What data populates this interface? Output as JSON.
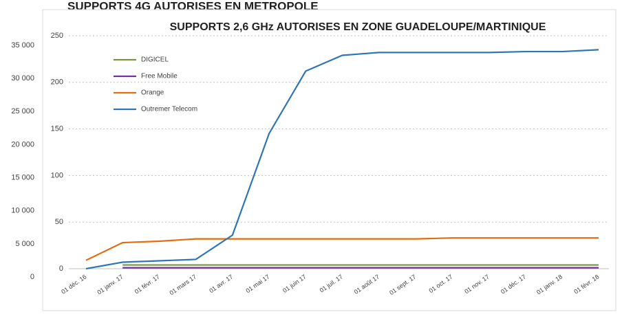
{
  "chart_data": [
    {
      "type": "line",
      "title": "SUPPORTS 2,6 GHz AUTORISES EN ZONE GUADELOUPE/MARTINIQUE",
      "categories": [
        "01 déc. 16",
        "01 janv. 17",
        "01 févr. 17",
        "01 mars 17",
        "01 avr. 17",
        "01 mai 17",
        "01 juin 17",
        "01 juil. 17",
        "01 août 17",
        "01 sept. 17",
        "01 oct. 17",
        "01 nov. 17",
        "01 déc. 17",
        "01 janv. 18",
        "01 févr. 18"
      ],
      "series": [
        {
          "name": "DIGICEL",
          "color": "#77933c",
          "values": [
            null,
            4,
            4,
            4,
            4,
            4,
            4,
            4,
            4,
            4,
            4,
            4,
            4,
            4,
            4
          ]
        },
        {
          "name": "Free Mobile",
          "color": "#7030a0",
          "values": [
            null,
            1,
            1,
            1,
            1,
            1,
            1,
            1,
            1,
            1,
            1,
            1,
            1,
            1,
            1
          ]
        },
        {
          "name": "Orange",
          "color": "#e46c0a",
          "values": [
            9,
            28,
            29.5,
            32,
            32,
            32,
            32,
            32,
            32,
            32,
            33,
            33,
            33,
            33,
            33
          ]
        },
        {
          "name": "Outremer Telecom",
          "color": "#2e75b6",
          "values": [
            0,
            7,
            8.5,
            10,
            36,
            145,
            212,
            229,
            232,
            232,
            232,
            232,
            233,
            233,
            235
          ]
        }
      ],
      "ylim": [
        0,
        250
      ],
      "yticks": [
        0,
        50,
        100,
        150,
        200,
        250
      ],
      "grid": true
    },
    {
      "type": "line",
      "title": "SUPPORTS 4G AUTORISES EN METROPOLE",
      "ylim": [
        0,
        35000
      ],
      "yticks": [
        {
          "value": 0,
          "label": "0"
        },
        {
          "value": 5000,
          "label": "5 000"
        },
        {
          "value": 10000,
          "label": "10 000"
        },
        {
          "value": 15000,
          "label": "15 000"
        },
        {
          "value": 20000,
          "label": "20 000"
        },
        {
          "value": 25000,
          "label": "25 000"
        },
        {
          "value": 30000,
          "label": "30 000"
        },
        {
          "value": 35000,
          "label": "35 000"
        }
      ]
    }
  ]
}
